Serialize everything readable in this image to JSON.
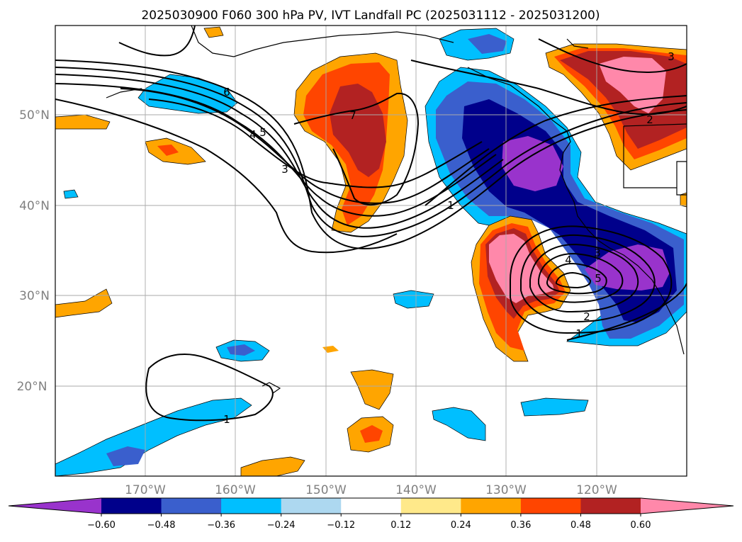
{
  "title": "2025030900 F060 300 hPa PV, IVT Landfall PC (2025031112 - 2025031200)",
  "x_ticks": [
    "170°W",
    "160°W",
    "150°W",
    "140°W",
    "130°W",
    "120°W"
  ],
  "y_ticks": [
    "50°N",
    "40°N",
    "30°N",
    "20°N"
  ],
  "colorbar": {
    "ticks": [
      "−0.60",
      "−0.48",
      "−0.36",
      "−0.24",
      "−0.12",
      "0.12",
      "0.24",
      "0.36",
      "0.48",
      "0.60"
    ],
    "colors": [
      "#9933cc",
      "#00008b",
      "#3a5fcd",
      "#00bfff",
      "#add8f0",
      "#ffffff",
      "#ffe98a",
      "#ffa500",
      "#ff4500",
      "#b22222",
      "#ff88aa"
    ]
  },
  "contour_labels": [
    "6",
    "4",
    "5",
    "3",
    "7",
    "1",
    "5",
    "3",
    "2",
    "4",
    "2",
    "1",
    "3",
    "1"
  ]
}
